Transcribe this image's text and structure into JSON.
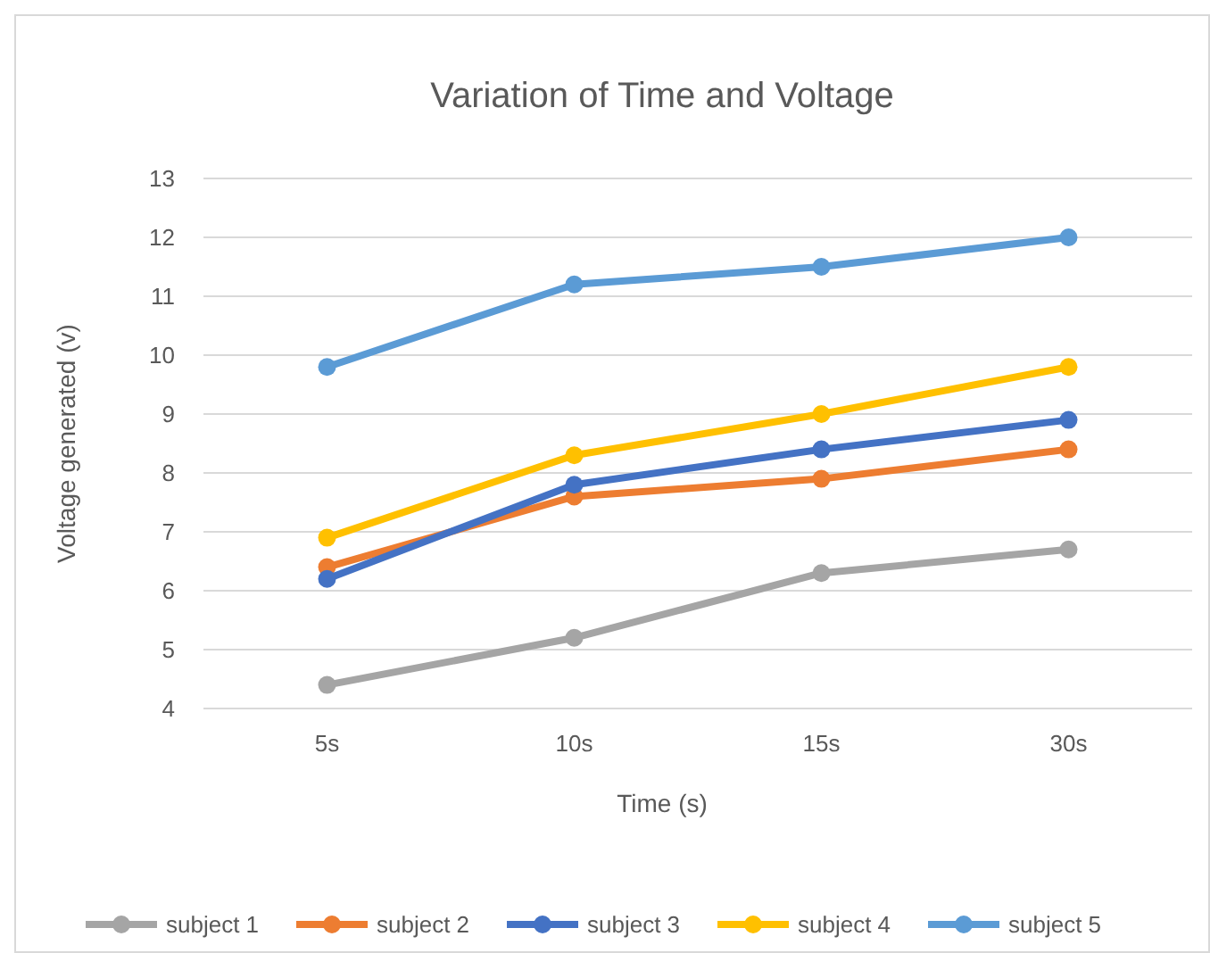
{
  "chart_data": {
    "type": "line",
    "title": "Variation of Time and Voltage",
    "xlabel": "Time (s)",
    "ylabel": "Voltage generated (v)",
    "categories": [
      "5s",
      "10s",
      "15s",
      "30s"
    ],
    "series": [
      {
        "name": "subject 1",
        "color": "#a5a5a5",
        "values": [
          4.4,
          5.2,
          6.3,
          6.7
        ]
      },
      {
        "name": "subject 2",
        "color": "#ed7d31",
        "values": [
          6.4,
          7.6,
          7.9,
          8.4
        ]
      },
      {
        "name": "subject 3",
        "color": "#4472c4",
        "values": [
          6.2,
          7.8,
          8.4,
          8.9
        ]
      },
      {
        "name": "subject 4",
        "color": "#ffc000",
        "values": [
          6.9,
          8.3,
          9.0,
          9.8
        ]
      },
      {
        "name": "subject 5",
        "color": "#5b9bd5",
        "values": [
          9.8,
          11.2,
          11.5,
          12.0
        ]
      }
    ],
    "ylim": [
      4,
      13
    ],
    "yticks": [
      4,
      5,
      6,
      7,
      8,
      9,
      10,
      11,
      12,
      13
    ],
    "grid": "y",
    "legend": "bottom",
    "marker": "circle",
    "line_style": "solid"
  }
}
